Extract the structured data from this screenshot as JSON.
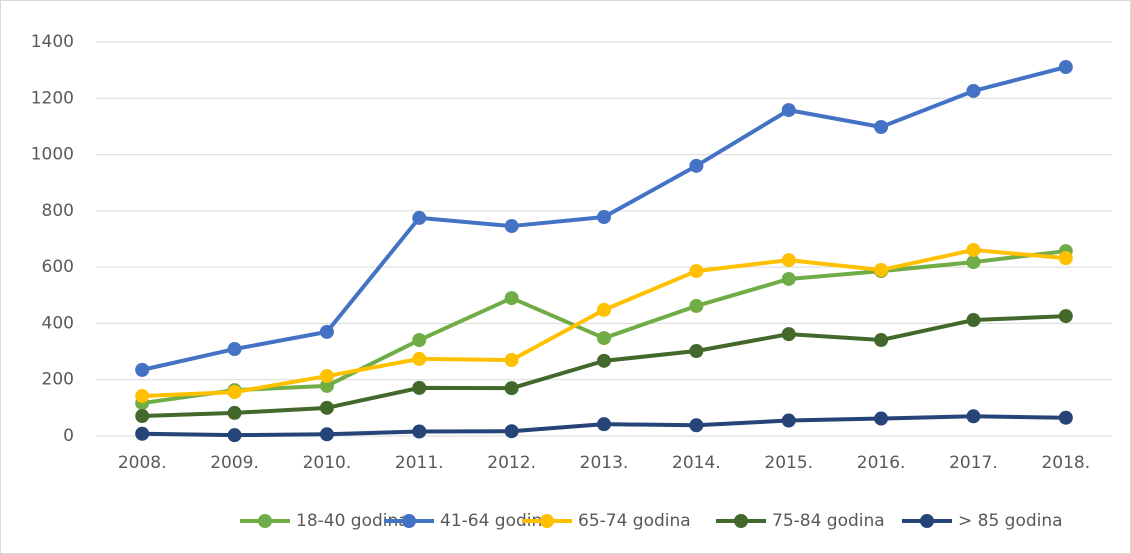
{
  "chart_data": {
    "type": "line",
    "categories": [
      "2008.",
      "2009.",
      "2010.",
      "2011.",
      "2012.",
      "2013.",
      "2014.",
      "2015.",
      "2016.",
      "2017.",
      "2018."
    ],
    "series": [
      {
        "name": "18-40 godina",
        "color": "#70ad47",
        "values": [
          117,
          163,
          178,
          341,
          490,
          348,
          462,
          558,
          586,
          618,
          657
        ]
      },
      {
        "name": "41-64 godine",
        "color": "#4472c4",
        "values": [
          235,
          309,
          370,
          775,
          746,
          778,
          960,
          1158,
          1098,
          1226,
          1311
        ]
      },
      {
        "name": "65-74 godina",
        "color": "#ffc000",
        "values": [
          142,
          156,
          213,
          274,
          270,
          448,
          586,
          625,
          590,
          661,
          632
        ]
      },
      {
        "name": "75-84 godina",
        "color": "#43682b",
        "values": [
          71,
          82,
          100,
          171,
          170,
          267,
          302,
          362,
          341,
          412,
          426
        ]
      },
      {
        "name": "> 85 godina",
        "color": "#264478",
        "values": [
          8,
          3,
          6,
          16,
          17,
          42,
          38,
          55,
          62,
          70,
          65
        ]
      }
    ],
    "ylim": [
      0,
      1400
    ],
    "yticks": [
      0,
      200,
      400,
      600,
      800,
      1000,
      1200,
      1400
    ],
    "grid": true,
    "legend": "bottom"
  }
}
